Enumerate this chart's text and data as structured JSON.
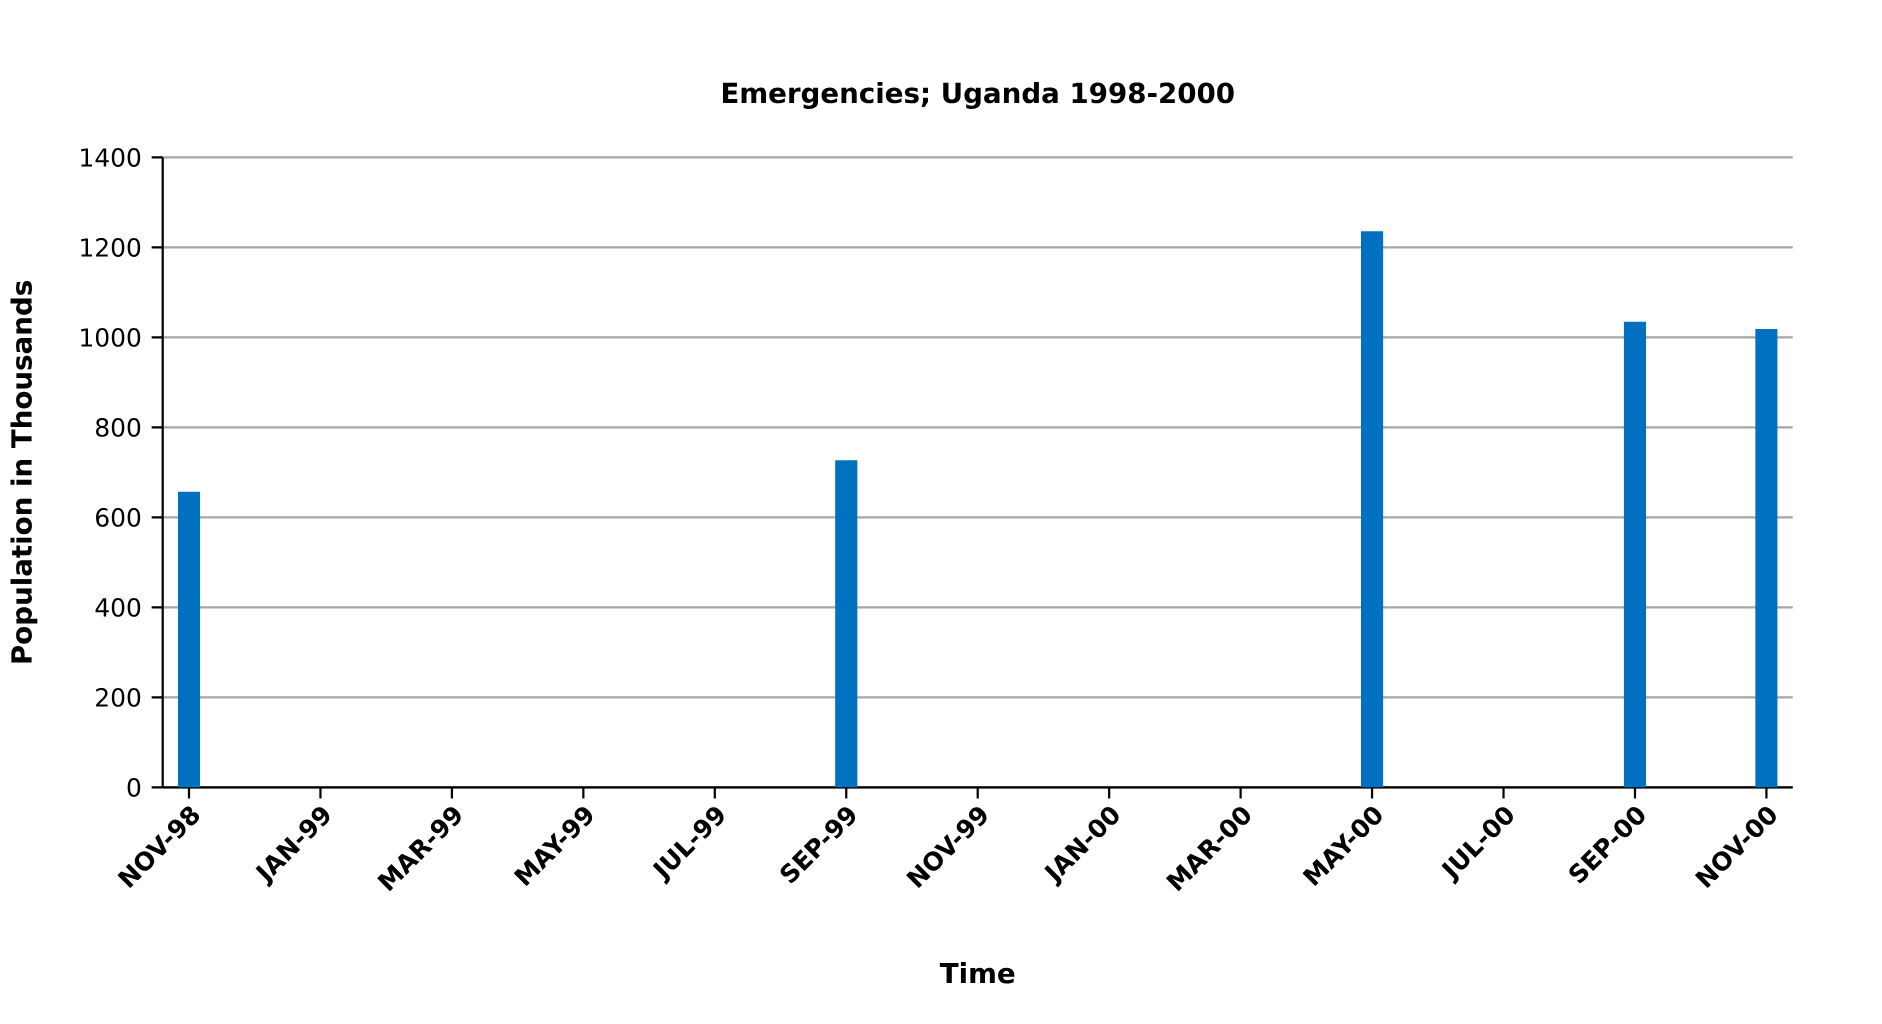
{
  "chart_data": {
    "type": "bar",
    "title": "Emergencies; Uganda 1998-2000",
    "xlabel": "Time",
    "ylabel": "Population in Thousands",
    "categories": [
      "NOV-98",
      "JAN-99",
      "MAR-99",
      "MAY-99",
      "JUL-99",
      "SEP-99",
      "NOV-99",
      "JAN-00",
      "MAR-00",
      "MAY-00",
      "JUL-00",
      "SEP-00",
      "NOV-00"
    ],
    "values": [
      657,
      null,
      null,
      null,
      null,
      727,
      null,
      null,
      null,
      1236,
      null,
      1035,
      1019
    ],
    "color": "#0070c0",
    "ylim": [
      0,
      1400
    ],
    "yticks": [
      0,
      200,
      400,
      600,
      800,
      1000,
      1200,
      1400
    ],
    "grid": "y"
  }
}
